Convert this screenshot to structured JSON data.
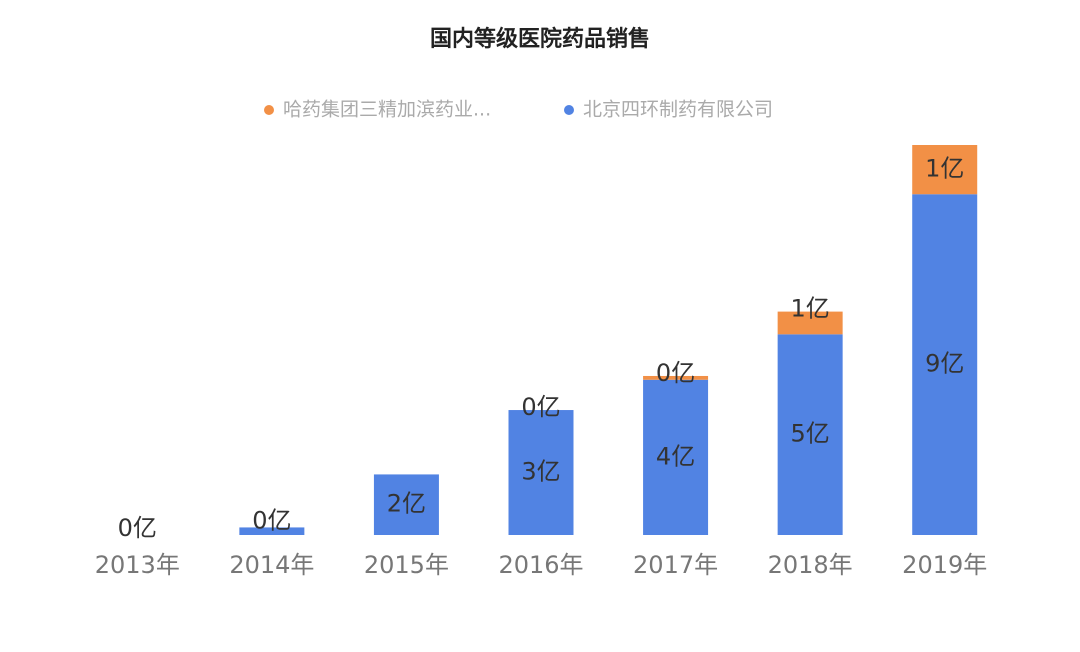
{
  "chart_data": {
    "type": "stacked_bar",
    "title": "国内等级医院药品销售",
    "categories": [
      "2013年",
      "2014年",
      "2015年",
      "2016年",
      "2017年",
      "2018年",
      "2019年"
    ],
    "series": [
      {
        "name": "北京四环制药有限公司",
        "color": "#5183e3",
        "values": [
          0,
          0.2,
          1.6,
          3.3,
          4.1,
          5.3,
          9.0
        ],
        "value_labels": [
          "0亿",
          "0亿",
          "2亿",
          "3亿",
          "4亿",
          "5亿",
          "9亿"
        ]
      },
      {
        "name": "哈药集团三精加滨药业...",
        "color": "#f29046",
        "values": [
          null,
          null,
          null,
          0.0,
          0.1,
          0.6,
          1.3
        ],
        "value_labels": [
          null,
          null,
          null,
          "0亿",
          "0亿",
          "1亿",
          "1亿"
        ]
      }
    ],
    "legend_position": "top"
  }
}
